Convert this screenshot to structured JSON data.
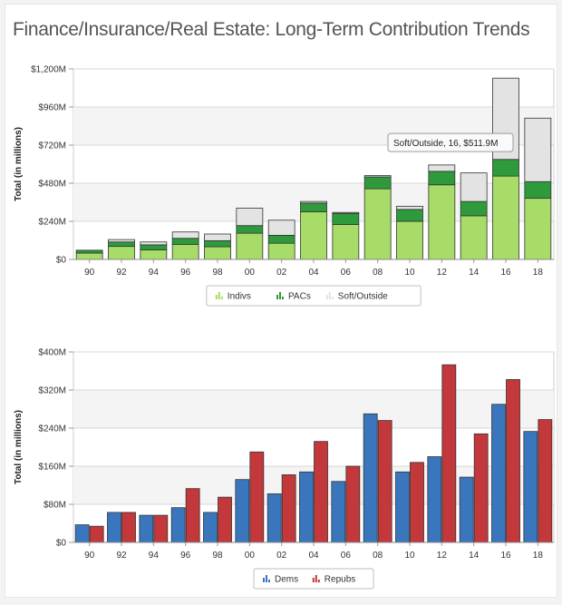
{
  "page": {
    "title": "Finance/Insurance/Real Estate: Long-Term Contribution Trends"
  },
  "colors": {
    "indivs": "#a6dc67",
    "pacs": "#2e9a3c",
    "soft": "#e3e3e3",
    "dems": "#3a76be",
    "repubs": "#c3383a"
  },
  "chart_data": [
    {
      "type": "bar",
      "stacked": true,
      "categories": [
        "90",
        "92",
        "94",
        "96",
        "98",
        "00",
        "02",
        "04",
        "06",
        "08",
        "10",
        "12",
        "14",
        "16",
        "18"
      ],
      "series": [
        {
          "name": "Indivs",
          "color_key": "indivs",
          "values": [
            40,
            82,
            60,
            95,
            80,
            165,
            102,
            300,
            220,
            445,
            240,
            470,
            275,
            525,
            385
          ]
        },
        {
          "name": "PACs",
          "color_key": "pacs",
          "values": [
            18,
            28,
            32,
            38,
            38,
            48,
            50,
            55,
            70,
            75,
            75,
            85,
            90,
            105,
            105
          ]
        },
        {
          "name": "Soft/Outside",
          "color_key": "soft",
          "values": [
            0,
            15,
            18,
            40,
            42,
            110,
            95,
            10,
            6,
            8,
            20,
            40,
            180,
            511.9,
            400
          ]
        }
      ],
      "ylabel": "Total (in millions)",
      "ylim": [
        0,
        1200
      ],
      "yticks": [
        0,
        240,
        480,
        720,
        960,
        1200
      ],
      "ytick_labels": [
        "$0",
        "$240M",
        "$480M",
        "$720M",
        "$960M",
        "$1,200M"
      ],
      "grid": "horizontal",
      "legend": "bottom-center",
      "tooltip": {
        "text": "Soft/Outside, 16, $511.9M",
        "category": "16",
        "series": "Soft/Outside"
      }
    },
    {
      "type": "bar",
      "stacked": false,
      "categories": [
        "90",
        "92",
        "94",
        "96",
        "98",
        "00",
        "02",
        "04",
        "06",
        "08",
        "10",
        "12",
        "14",
        "16",
        "18"
      ],
      "series": [
        {
          "name": "Dems",
          "color_key": "dems",
          "values": [
            37,
            63,
            57,
            73,
            63,
            132,
            102,
            148,
            128,
            270,
            148,
            180,
            137,
            290,
            233
          ]
        },
        {
          "name": "Repubs",
          "color_key": "repubs",
          "values": [
            34,
            63,
            57,
            113,
            95,
            190,
            142,
            212,
            160,
            256,
            168,
            373,
            228,
            342,
            258
          ]
        }
      ],
      "ylabel": "Total (in millions)",
      "ylim": [
        0,
        400
      ],
      "yticks": [
        0,
        80,
        160,
        240,
        320,
        400
      ],
      "ytick_labels": [
        "$0",
        "$80M",
        "$160M",
        "$240M",
        "$320M",
        "$400M"
      ],
      "grid": "horizontal",
      "legend": "bottom-center"
    }
  ]
}
